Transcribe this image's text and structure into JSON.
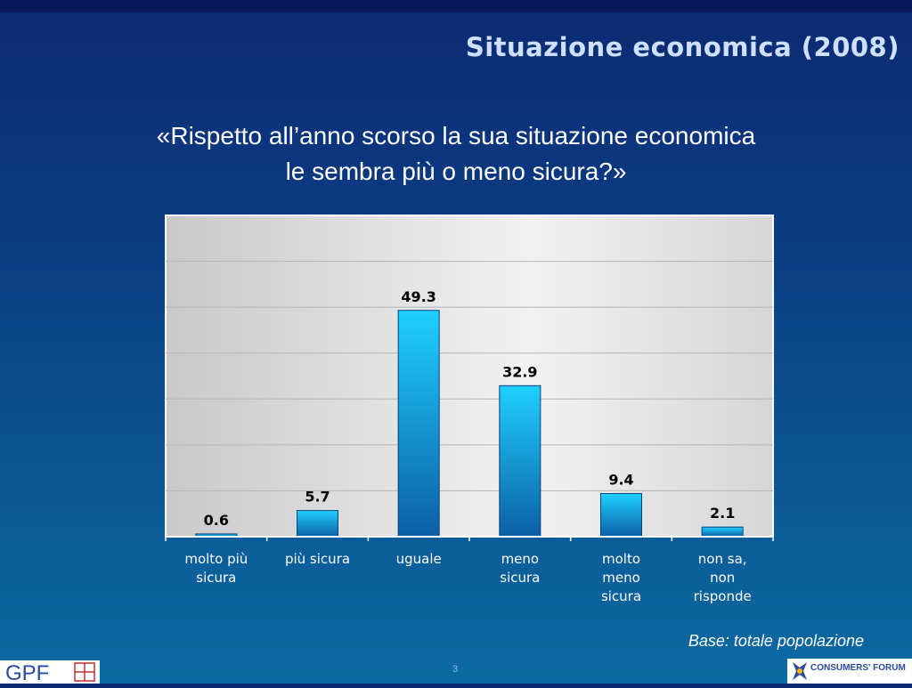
{
  "slide": {
    "title": "Situazione economica (2008)",
    "question_line1": "«Rispetto all’anno scorso la sua situazione economica",
    "question_line2": "le sembra più o meno sicura?»",
    "base_note": "Base: totale popolazione",
    "page_number": "3"
  },
  "logos": {
    "left_text": "GPF",
    "right_text": "CONSUMERS' FORUM"
  },
  "colors": {
    "bar_top": "#1fd0ff",
    "bar_bottom": "#0b5fa5",
    "plot_bg": "#e6e6e6"
  },
  "chart_data": {
    "type": "bar",
    "categories": [
      [
        "molto più",
        "sicura"
      ],
      [
        "più sicura"
      ],
      [
        "uguale"
      ],
      [
        "meno",
        "sicura"
      ],
      [
        "molto",
        "meno",
        "sicura"
      ],
      [
        "non sa,",
        "non",
        "risponde"
      ]
    ],
    "values": [
      0.6,
      5.7,
      49.3,
      32.9,
      9.4,
      2.1
    ],
    "data_labels": [
      "0.6",
      "5.7",
      "49.3",
      "32.9",
      "9.4",
      "2.1"
    ],
    "ylim": [
      0,
      70
    ],
    "grid": true,
    "legend": "none"
  }
}
